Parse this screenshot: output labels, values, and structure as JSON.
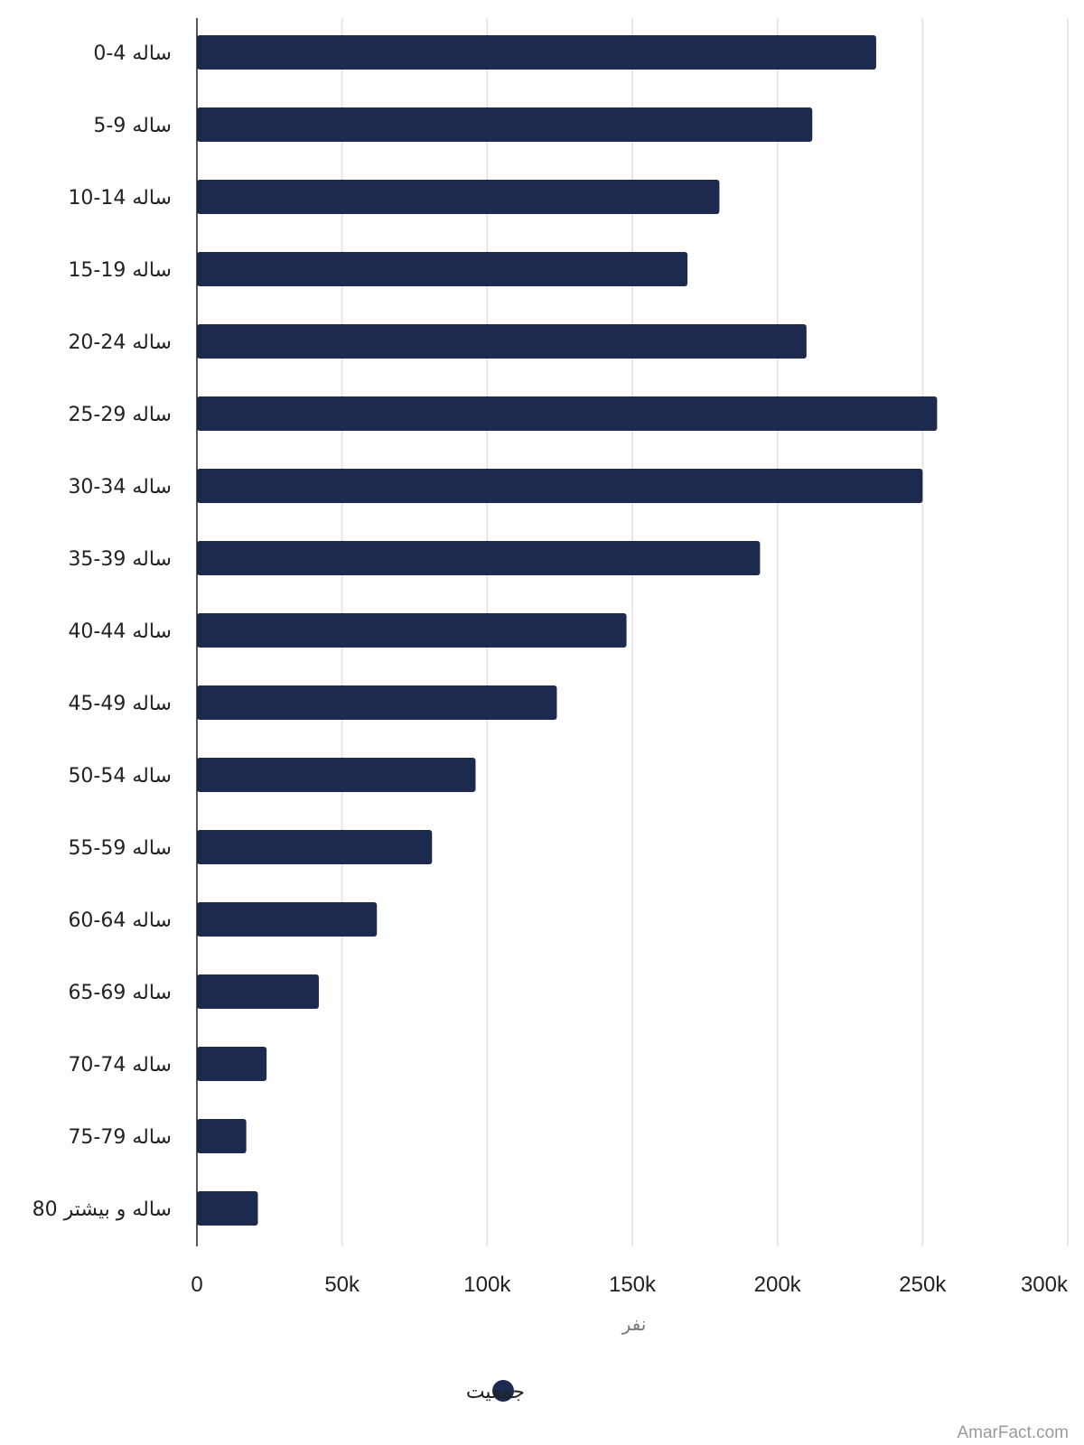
{
  "chart_data": {
    "type": "bar",
    "orientation": "horizontal",
    "categories": [
      "0-4 ساله",
      "5-9 ساله",
      "10-14 ساله",
      "15-19 ساله",
      "20-24 ساله",
      "25-29 ساله",
      "30-34 ساله",
      "35-39 ساله",
      "40-44 ساله",
      "45-49 ساله",
      "50-54 ساله",
      "55-59 ساله",
      "60-64 ساله",
      "65-69 ساله",
      "70-74 ساله",
      "75-79 ساله",
      "80 ساله و بیشتر"
    ],
    "series": [
      {
        "name": "جمعیت",
        "color": "#1b2a4e",
        "values": [
          234000,
          212000,
          180000,
          169000,
          210000,
          255000,
          250000,
          194000,
          148000,
          124000,
          96000,
          81000,
          62000,
          42000,
          24000,
          17000,
          21000
        ]
      }
    ],
    "xlim": [
      0,
      300000
    ],
    "x_ticks": [
      0,
      50000,
      100000,
      150000,
      200000,
      250000,
      300000
    ],
    "x_tick_labels": [
      "0",
      "50k",
      "100k",
      "150k",
      "200k",
      "250k",
      "300k"
    ],
    "xlabel": "نفر",
    "ylabel": "",
    "grid": true,
    "legend_position": "bottom-center"
  },
  "watermark": "AmarFact.com"
}
